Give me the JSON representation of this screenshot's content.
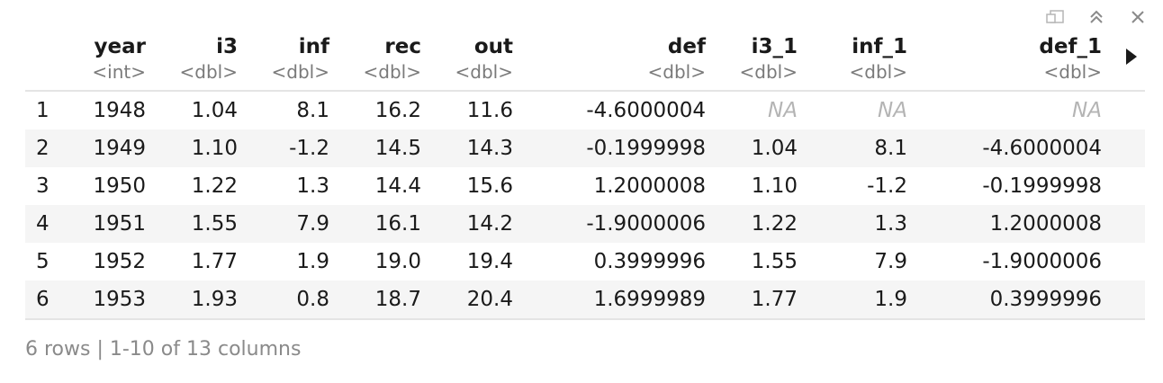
{
  "toolbar": {
    "icons": [
      "popout-icon",
      "collapse-icon",
      "close-icon"
    ]
  },
  "table": {
    "columns": [
      {
        "name": "year",
        "type": "<int>"
      },
      {
        "name": "i3",
        "type": "<dbl>"
      },
      {
        "name": "inf",
        "type": "<dbl>"
      },
      {
        "name": "rec",
        "type": "<dbl>"
      },
      {
        "name": "out",
        "type": "<dbl>"
      },
      {
        "name": "def",
        "type": "<dbl>"
      },
      {
        "name": "i3_1",
        "type": "<dbl>"
      },
      {
        "name": "inf_1",
        "type": "<dbl>"
      },
      {
        "name": "def_1",
        "type": "<dbl>"
      }
    ],
    "rows": [
      {
        "n": "1",
        "cells": [
          "1948",
          "1.04",
          "8.1",
          "16.2",
          "11.6",
          "-4.6000004",
          "NA",
          "NA",
          "NA"
        ]
      },
      {
        "n": "2",
        "cells": [
          "1949",
          "1.10",
          "-1.2",
          "14.5",
          "14.3",
          "-0.1999998",
          "1.04",
          "8.1",
          "-4.6000004"
        ]
      },
      {
        "n": "3",
        "cells": [
          "1950",
          "1.22",
          "1.3",
          "14.4",
          "15.6",
          "1.2000008",
          "1.10",
          "-1.2",
          "-0.1999998"
        ]
      },
      {
        "n": "4",
        "cells": [
          "1951",
          "1.55",
          "7.9",
          "16.1",
          "14.2",
          "-1.9000006",
          "1.22",
          "1.3",
          "1.2000008"
        ]
      },
      {
        "n": "5",
        "cells": [
          "1952",
          "1.77",
          "1.9",
          "19.0",
          "19.4",
          "0.3999996",
          "1.55",
          "7.9",
          "-1.9000006"
        ]
      },
      {
        "n": "6",
        "cells": [
          "1953",
          "1.93",
          "0.8",
          "18.7",
          "20.4",
          "1.6999989",
          "1.77",
          "1.9",
          "0.3999996"
        ]
      }
    ]
  },
  "footer": {
    "summary": "6 rows | 1-10 of 13 columns"
  },
  "colors": {
    "header_rule": "#e4e4e4",
    "alt_row": "#f5f5f5",
    "type_text": "#7a7a7a",
    "na_text": "#b4b4b4",
    "footer_text": "#8a8a8a"
  }
}
